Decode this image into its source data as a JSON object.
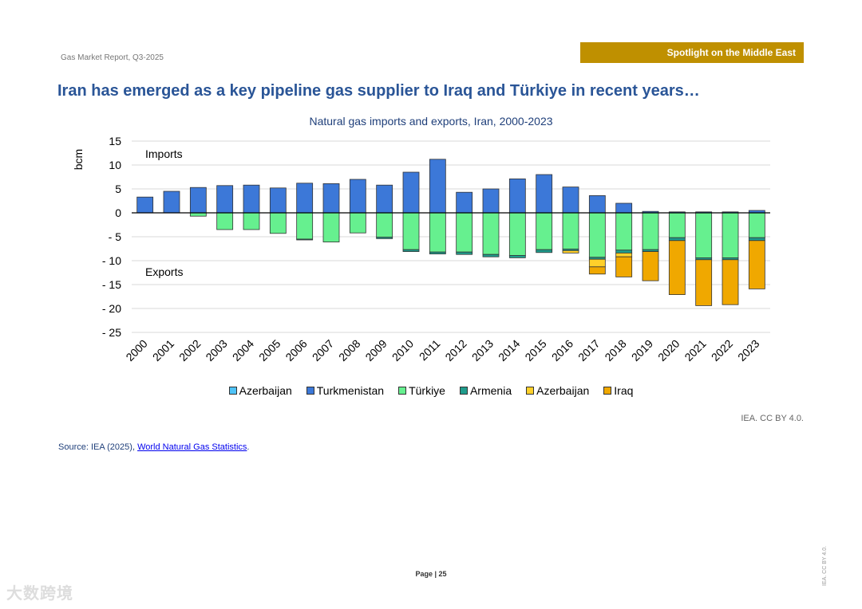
{
  "header": {
    "report": "Gas Market Report, Q3-2025",
    "badge": "Spotlight on the Middle East"
  },
  "page_title": "Iran has emerged as a key pipeline gas supplier to Iraq and Türkiye in recent years…",
  "colors": {
    "azerbaijan_imp": "#4fc3f7",
    "turkmenistan": "#3c78d8",
    "turkiye": "#66f08f",
    "armenia": "#1f9c8c",
    "azerbaijan_exp": "#ffd02a",
    "iraq": "#f0a800",
    "badge": "#bf9000",
    "title": "#2a5597"
  },
  "chart_data": {
    "type": "bar",
    "stacked": true,
    "title": "Natural gas imports and exports, Iran, 2000-2023",
    "ylabel": "bcm",
    "xlabel": "",
    "ylim": [
      -25,
      15
    ],
    "yticks": [
      15,
      10,
      5,
      0,
      -5,
      -10,
      -15,
      -20,
      -25
    ],
    "ytick_labels": [
      "15",
      "10",
      "5",
      "0",
      "- 5",
      "- 10",
      "- 15",
      "- 20",
      "- 25"
    ],
    "grid": true,
    "annotations": [
      "Imports",
      "Exports"
    ],
    "legend_position": "bottom",
    "categories": [
      "2000",
      "2001",
      "2002",
      "2003",
      "2004",
      "2005",
      "2006",
      "2007",
      "2008",
      "2009",
      "2010",
      "2011",
      "2012",
      "2013",
      "2014",
      "2015",
      "2016",
      "2017",
      "2018",
      "2019",
      "2020",
      "2021",
      "2022",
      "2023"
    ],
    "series": [
      {
        "name": "Azerbaijan",
        "key": "azerbaijan_imp",
        "values": [
          0,
          0,
          0,
          0,
          0,
          0,
          0,
          0,
          0,
          0,
          0,
          0,
          0,
          0,
          0,
          0,
          0,
          0,
          0,
          0,
          0,
          0,
          0,
          0
        ]
      },
      {
        "name": "Turkmenistan",
        "key": "turkmenistan",
        "values": [
          3.3,
          4.5,
          5.3,
          5.7,
          5.8,
          5.2,
          6.2,
          6.1,
          7.0,
          5.8,
          8.5,
          11.2,
          4.3,
          5.0,
          7.1,
          8.0,
          5.4,
          3.6,
          2.0,
          0.3,
          0.2,
          0.2,
          0.2,
          0.5
        ]
      },
      {
        "name": "Türkiye",
        "key": "turkiye",
        "values": [
          0,
          0,
          -0.7,
          -3.5,
          -3.5,
          -4.3,
          -5.5,
          -6.1,
          -4.2,
          -5.1,
          -7.7,
          -8.2,
          -8.2,
          -8.7,
          -8.9,
          -7.7,
          -7.6,
          -9.3,
          -7.8,
          -7.7,
          -5.2,
          -9.4,
          -9.4,
          -5.2
        ]
      },
      {
        "name": "Armenia",
        "key": "armenia",
        "values": [
          0,
          0,
          0,
          0,
          0,
          0,
          -0.1,
          0,
          0,
          -0.3,
          -0.4,
          -0.4,
          -0.5,
          -0.5,
          -0.5,
          -0.6,
          -0.3,
          -0.4,
          -0.6,
          -0.4,
          -0.6,
          -0.4,
          -0.4,
          -0.6
        ]
      },
      {
        "name": "Azerbaijan",
        "key": "azerbaijan_exp",
        "values": [
          0,
          0,
          0,
          0,
          0,
          0,
          0,
          0,
          0,
          0,
          0,
          0,
          0,
          0,
          0,
          0,
          -0.5,
          -1.6,
          -0.8,
          0,
          0,
          0,
          0,
          0
        ]
      },
      {
        "name": "Iraq",
        "key": "iraq",
        "values": [
          0,
          0,
          0,
          0,
          0,
          0,
          0,
          0,
          0,
          0,
          0,
          0,
          0,
          0,
          0,
          0,
          0,
          -1.5,
          -4.2,
          -6.1,
          -11.3,
          -9.6,
          -9.4,
          -10.1
        ]
      }
    ]
  },
  "credit": "IEA. CC BY 4.0.",
  "source": {
    "prefix": "Source: IEA (2025), ",
    "link": "World Natural Gas Statistics",
    "suffix": "."
  },
  "footer": {
    "page": "Page | 25",
    "vertical_credit": "IEA. CC BY 4.0.",
    "watermark": "大数跨境"
  }
}
